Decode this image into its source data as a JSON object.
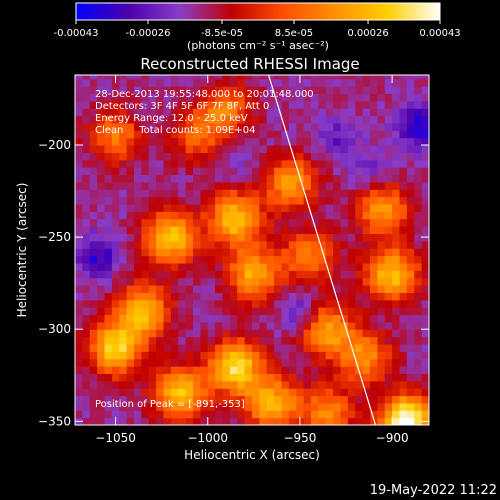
{
  "colors": {
    "background": "#000000",
    "foreground": "#ffffff",
    "colormap": [
      "#0000ff",
      "#4b00ad",
      "#8a3cc8",
      "#c00000",
      "#ff5000",
      "#ff9000",
      "#ffd000",
      "#ffffff"
    ]
  },
  "colorbar": {
    "ticks": [
      "-0.00043",
      "-0.00026",
      "-8.5e-05",
      "8.5e-05",
      "0.00026",
      "0.00043"
    ],
    "tick_values": [
      -0.00043,
      -0.00026,
      -8.5e-05,
      8.5e-05,
      0.00026,
      0.00043
    ],
    "range": [
      -0.00043,
      0.00043
    ],
    "unit_label": "(photons cm⁻² s⁻¹ asec⁻²)"
  },
  "chart_data": {
    "type": "heatmap",
    "title": "Reconstructed RHESSI Image",
    "xlabel": "Heliocentric X (arcsec)",
    "ylabel": "Heliocentric Y (arcsec)",
    "xlim": [
      -1072,
      -880
    ],
    "ylim": [
      -352,
      -162
    ],
    "xticks": [
      -1050,
      -1000,
      -950,
      -900
    ],
    "yticks": [
      -200,
      -250,
      -300,
      -350
    ],
    "info_lines": [
      "28-Dec-2013 19:55:48.000 to 20:01:48.000",
      "Detectors: 3F 4F 5F 6F 7F 8F, Att 0",
      "Energy Range: 12.0 - 25.0 keV",
      "Clean     Total counts: 1.09E+04"
    ],
    "peak_label": "Position of Peak = [-891,-353]",
    "peak": [
      -891,
      -353
    ],
    "limb_line": [
      [
        -967,
        -162
      ],
      [
        -909,
        -352
      ]
    ],
    "hot_spots": [
      {
        "x": -1050,
        "y": -310,
        "level": 0.82
      },
      {
        "x": -1035,
        "y": -290,
        "level": 0.75
      },
      {
        "x": -1020,
        "y": -250,
        "level": 0.8
      },
      {
        "x": -1015,
        "y": -335,
        "level": 0.78
      },
      {
        "x": -985,
        "y": -240,
        "level": 0.78
      },
      {
        "x": -985,
        "y": -320,
        "level": 0.85
      },
      {
        "x": -975,
        "y": -270,
        "level": 0.72
      },
      {
        "x": -965,
        "y": -340,
        "level": 0.75
      },
      {
        "x": -1050,
        "y": -195,
        "level": 0.6
      },
      {
        "x": -1005,
        "y": -195,
        "level": 0.55
      },
      {
        "x": -990,
        "y": -180,
        "level": 0.6
      },
      {
        "x": -955,
        "y": -220,
        "level": 0.68
      },
      {
        "x": -945,
        "y": -260,
        "level": 0.62
      },
      {
        "x": -935,
        "y": -300,
        "level": 0.7
      },
      {
        "x": -900,
        "y": -270,
        "level": 0.78
      },
      {
        "x": -905,
        "y": -235,
        "level": 0.68
      },
      {
        "x": -915,
        "y": -315,
        "level": 0.65
      },
      {
        "x": -892,
        "y": -350,
        "level": 1.0
      },
      {
        "x": -935,
        "y": -345,
        "level": 0.62
      }
    ],
    "cold_spots": [
      {
        "x": -1060,
        "y": -260,
        "level": 0.1
      },
      {
        "x": -930,
        "y": -195,
        "level": 0.2
      },
      {
        "x": -885,
        "y": -190,
        "level": 0.05
      },
      {
        "x": -950,
        "y": -290,
        "level": 0.18
      },
      {
        "x": -910,
        "y": -215,
        "level": 0.22
      },
      {
        "x": -985,
        "y": -205,
        "level": 0.25
      }
    ]
  },
  "footer": {
    "timestamp": "19-May-2022 11:22"
  }
}
